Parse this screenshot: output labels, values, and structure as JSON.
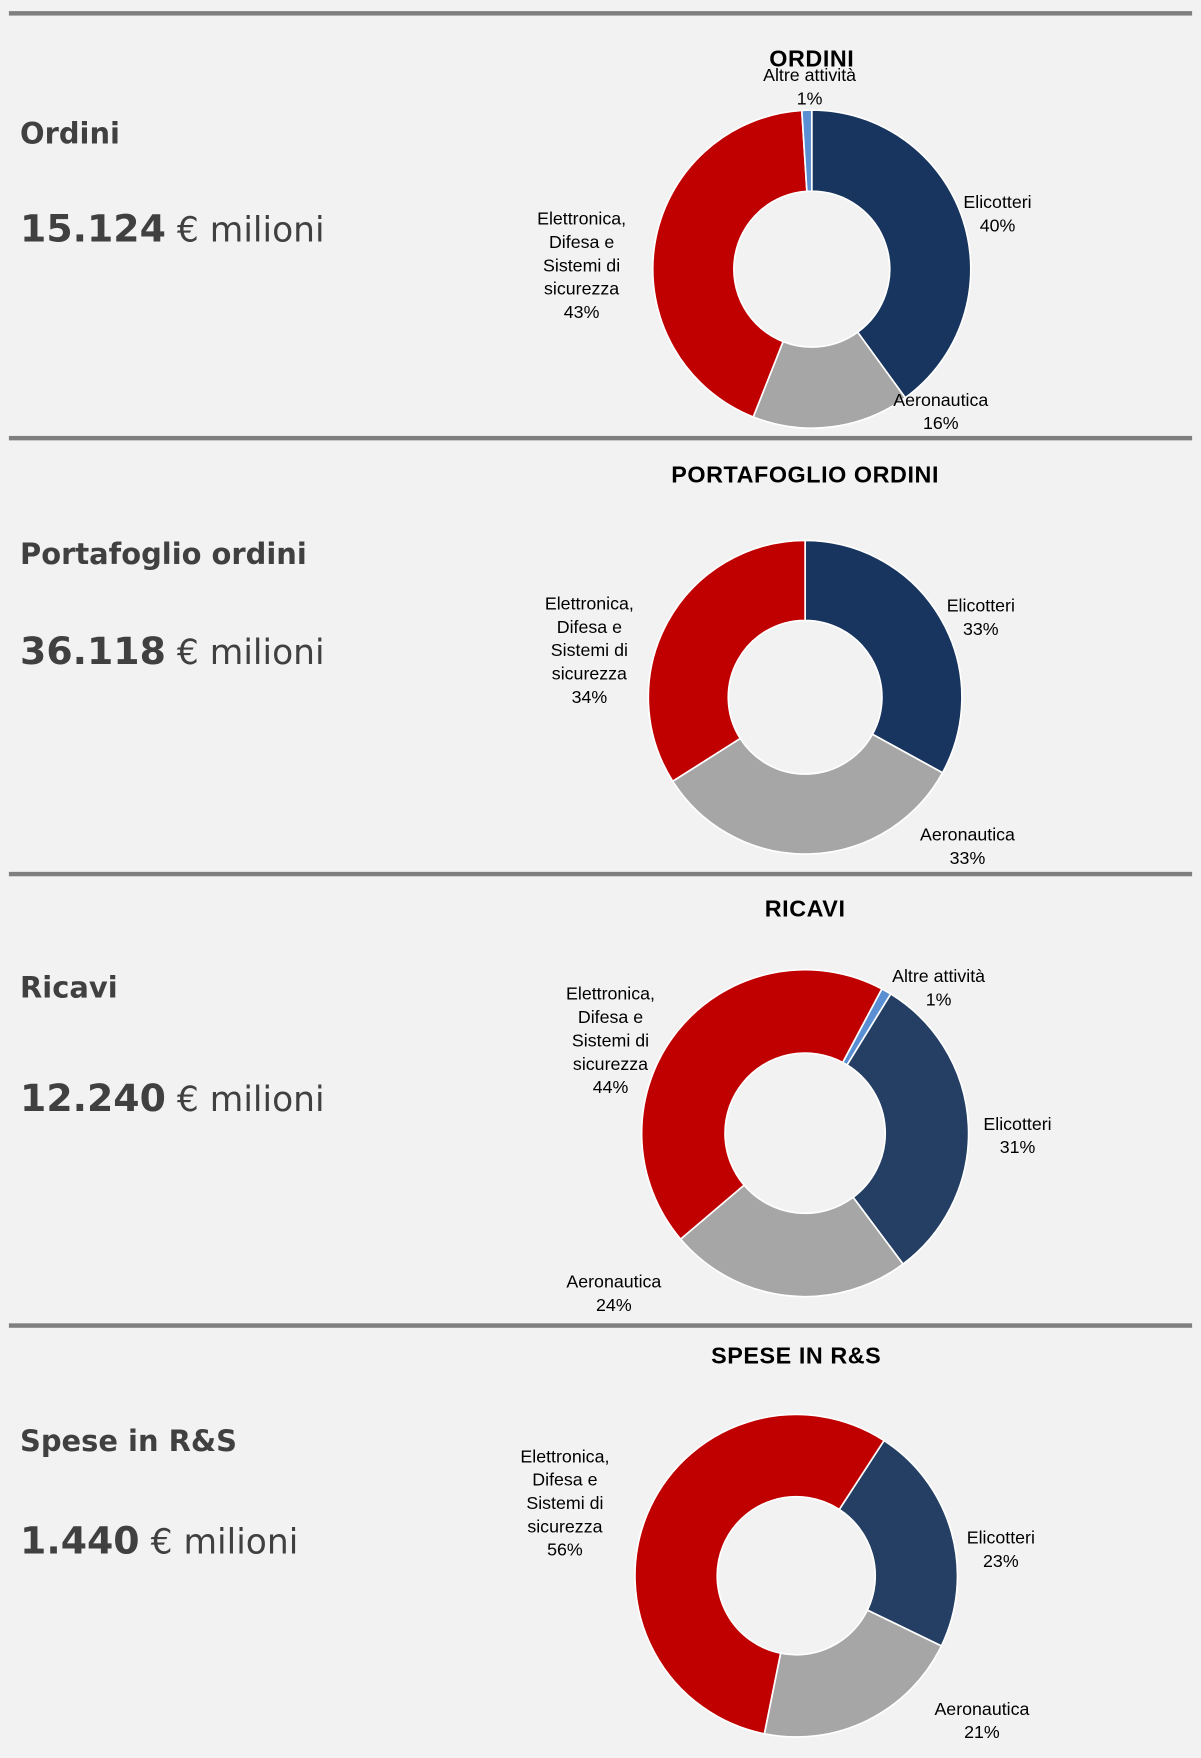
{
  "panels": [
    {
      "label": "Ordini",
      "amount": "15.124",
      "unit": "€ milioni"
    },
    {
      "label": "Portafoglio ordini",
      "amount": "36.118",
      "unit": "€ milioni"
    },
    {
      "label": "Ricavi",
      "amount": "12.240",
      "unit": "€ milioni"
    },
    {
      "label": "Spese in R&S",
      "amount": "1.440",
      "unit": "€ milioni"
    }
  ],
  "chart_data": [
    {
      "type": "donut",
      "title": "ORDINI",
      "start_angle": 0,
      "categories": [
        "Elicotteri",
        "Aeronautica",
        "Elettronica, Difesa e Sistemi di sicurezza",
        "Altre attività"
      ],
      "values": [
        40,
        16,
        43,
        1
      ],
      "value_labels": [
        "40%",
        "16%",
        "43%",
        "1%"
      ],
      "colors": [
        "#17355e",
        "#a6a6a6",
        "#c00000",
        "#5b8fd4"
      ]
    },
    {
      "type": "donut",
      "title": "PORTAFOGLIO ORDINI",
      "start_angle": 0,
      "categories": [
        "Elicotteri",
        "Aeronautica",
        "Elettronica, Difesa e Sistemi di sicurezza"
      ],
      "values": [
        33,
        33,
        34
      ],
      "value_labels": [
        "33%",
        "33%",
        "34%"
      ],
      "colors": [
        "#17355e",
        "#a6a6a6",
        "#c00000"
      ]
    },
    {
      "type": "donut",
      "title": "RICAVI",
      "start_angle": 28,
      "categories": [
        "Altre attività",
        "Elicotteri",
        "Aeronautica",
        "Elettronica, Difesa e Sistemi di sicurezza"
      ],
      "values": [
        1,
        31,
        24,
        44
      ],
      "value_labels": [
        "1%",
        "31%",
        "24%",
        "44%"
      ],
      "colors": [
        "#5b8fd4",
        "#243f63",
        "#a6a6a6",
        "#c00000"
      ]
    },
    {
      "type": "donut",
      "title": "SPESE IN R&S",
      "start_angle": 33,
      "categories": [
        "Elicotteri",
        "Aeronautica",
        "Elettronica, Difesa e Sistemi di sicurezza"
      ],
      "values": [
        23,
        21,
        56
      ],
      "value_labels": [
        "23%",
        "21%",
        "56%"
      ],
      "colors": [
        "#243f63",
        "#a6a6a6",
        "#c00000"
      ]
    }
  ]
}
